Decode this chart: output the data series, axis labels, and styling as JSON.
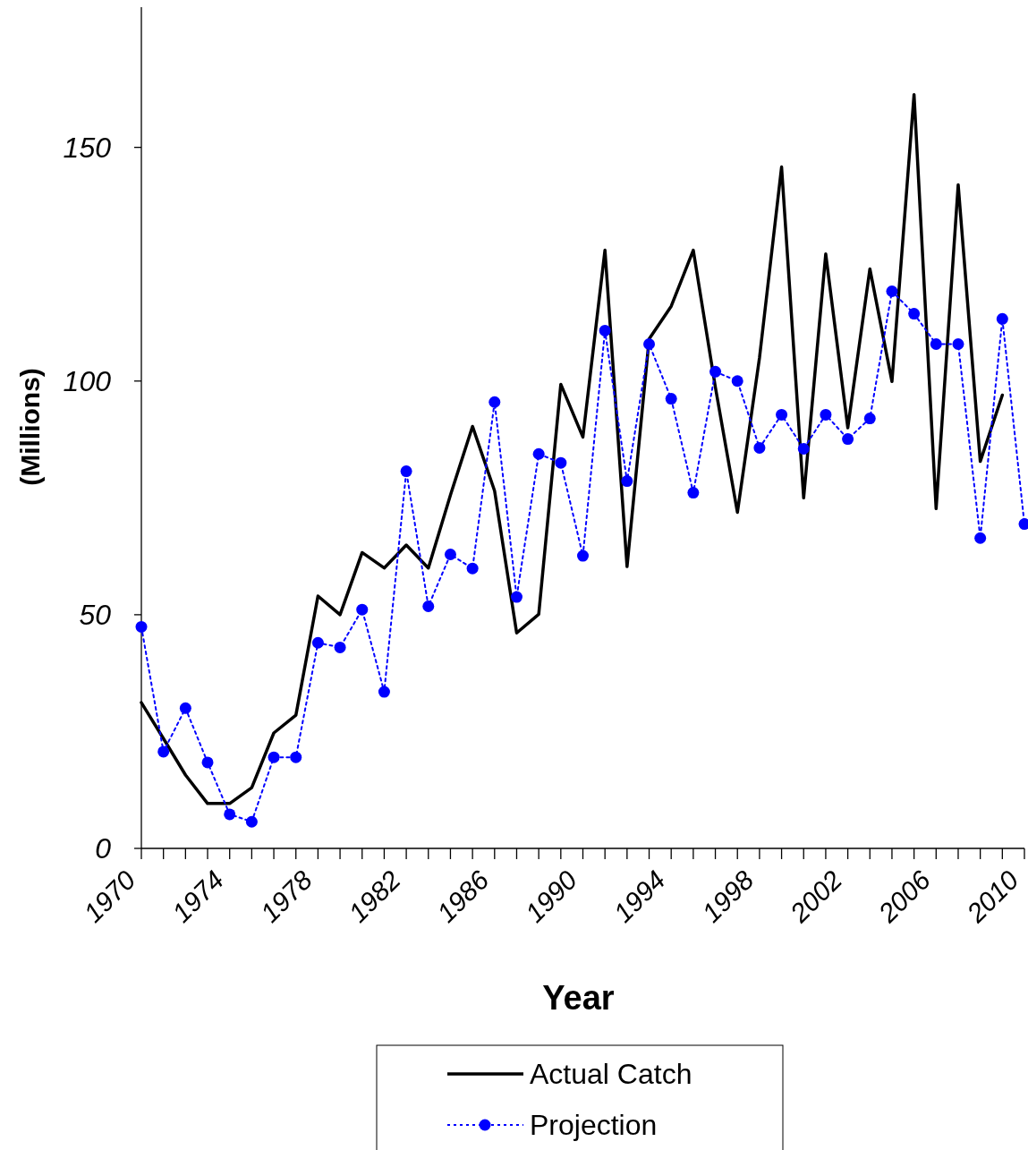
{
  "chart_data": {
    "type": "line",
    "xlabel": "Year",
    "ylabel": "(Millions)",
    "x": [
      1970,
      1971,
      1972,
      1973,
      1974,
      1975,
      1976,
      1977,
      1978,
      1979,
      1980,
      1981,
      1982,
      1983,
      1984,
      1985,
      1986,
      1987,
      1988,
      1989,
      1990,
      1991,
      1992,
      1993,
      1994,
      1995,
      1996,
      1997,
      1998,
      1999,
      2000,
      2001,
      2002,
      2003,
      2004,
      2005,
      2006,
      2007,
      2008,
      2009,
      2010
    ],
    "series": [
      {
        "name": "Actual Catch",
        "color": "#000000",
        "marker": "none",
        "line_style": "solid",
        "values": [
          31.2,
          23.5,
          15.7,
          9.6,
          9.6,
          13,
          24.7,
          28.5,
          54,
          50,
          63.3,
          60,
          64.9,
          60,
          75.6,
          90.3,
          76.5,
          46.1,
          50.1,
          99.3,
          88,
          128,
          60.3,
          109,
          116,
          128,
          98.7,
          71.9,
          105,
          145.8,
          75,
          127.2,
          90,
          124,
          99.9,
          161.3,
          72.7,
          142,
          82.8,
          97,
          null
        ]
      },
      {
        "name": "Projection",
        "color": "#0000ff",
        "marker": "circle",
        "line_style": "dotted",
        "values": [
          47.4,
          20.7,
          30,
          18.4,
          7.3,
          5.7,
          19.5,
          19.5,
          44,
          43,
          51.1,
          33.5,
          80.7,
          51.8,
          62.9,
          59.9,
          95.5,
          53.8,
          84.4,
          82.5,
          62.6,
          110.8,
          78.6,
          107.9,
          96.2,
          76.1,
          102,
          100,
          85.7,
          92.8,
          85.5,
          92.8,
          87.6,
          92,
          119.2,
          114.4,
          107.9,
          107.9,
          66.4,
          113.3,
          69.4
        ]
      }
    ],
    "xlim": [
      1970,
      2010
    ],
    "xticks": [
      1970,
      {
        "value": 1971,
        "label": null
      },
      {
        "value": 1972,
        "label": null
      },
      {
        "value": 1973,
        "label": null
      },
      1974,
      {
        "value": 1975,
        "label": null
      },
      {
        "value": 1976,
        "label": null
      },
      {
        "value": 1977,
        "label": null
      },
      1978,
      {
        "value": 1979,
        "label": null
      },
      {
        "value": 1980,
        "label": null
      },
      {
        "value": 1981,
        "label": null
      },
      1982,
      {
        "value": 1983,
        "label": null
      },
      {
        "value": 1984,
        "label": null
      },
      {
        "value": 1985,
        "label": null
      },
      1986,
      {
        "value": 1987,
        "label": null
      },
      {
        "value": 1988,
        "label": null
      },
      {
        "value": 1989,
        "label": null
      },
      1990,
      {
        "value": 1991,
        "label": null
      },
      {
        "value": 1992,
        "label": null
      },
      {
        "value": 1993,
        "label": null
      },
      1994,
      {
        "value": 1995,
        "label": null
      },
      {
        "value": 1996,
        "label": null
      },
      {
        "value": 1997,
        "label": null
      },
      1998,
      {
        "value": 1999,
        "label": null
      },
      {
        "value": 2000,
        "label": null
      },
      {
        "value": 2001,
        "label": null
      },
      2002,
      {
        "value": 2003,
        "label": null
      },
      {
        "value": 2004,
        "label": null
      },
      {
        "value": 2005,
        "label": null
      },
      2006,
      {
        "value": 2007,
        "label": null
      },
      {
        "value": 2008,
        "label": null
      },
      {
        "value": 2009,
        "label": null
      },
      2010
    ],
    "ylim": [
      0,
      180
    ],
    "yticks": [
      0,
      50,
      100,
      150
    ],
    "grid": false,
    "legend": "bottom"
  }
}
